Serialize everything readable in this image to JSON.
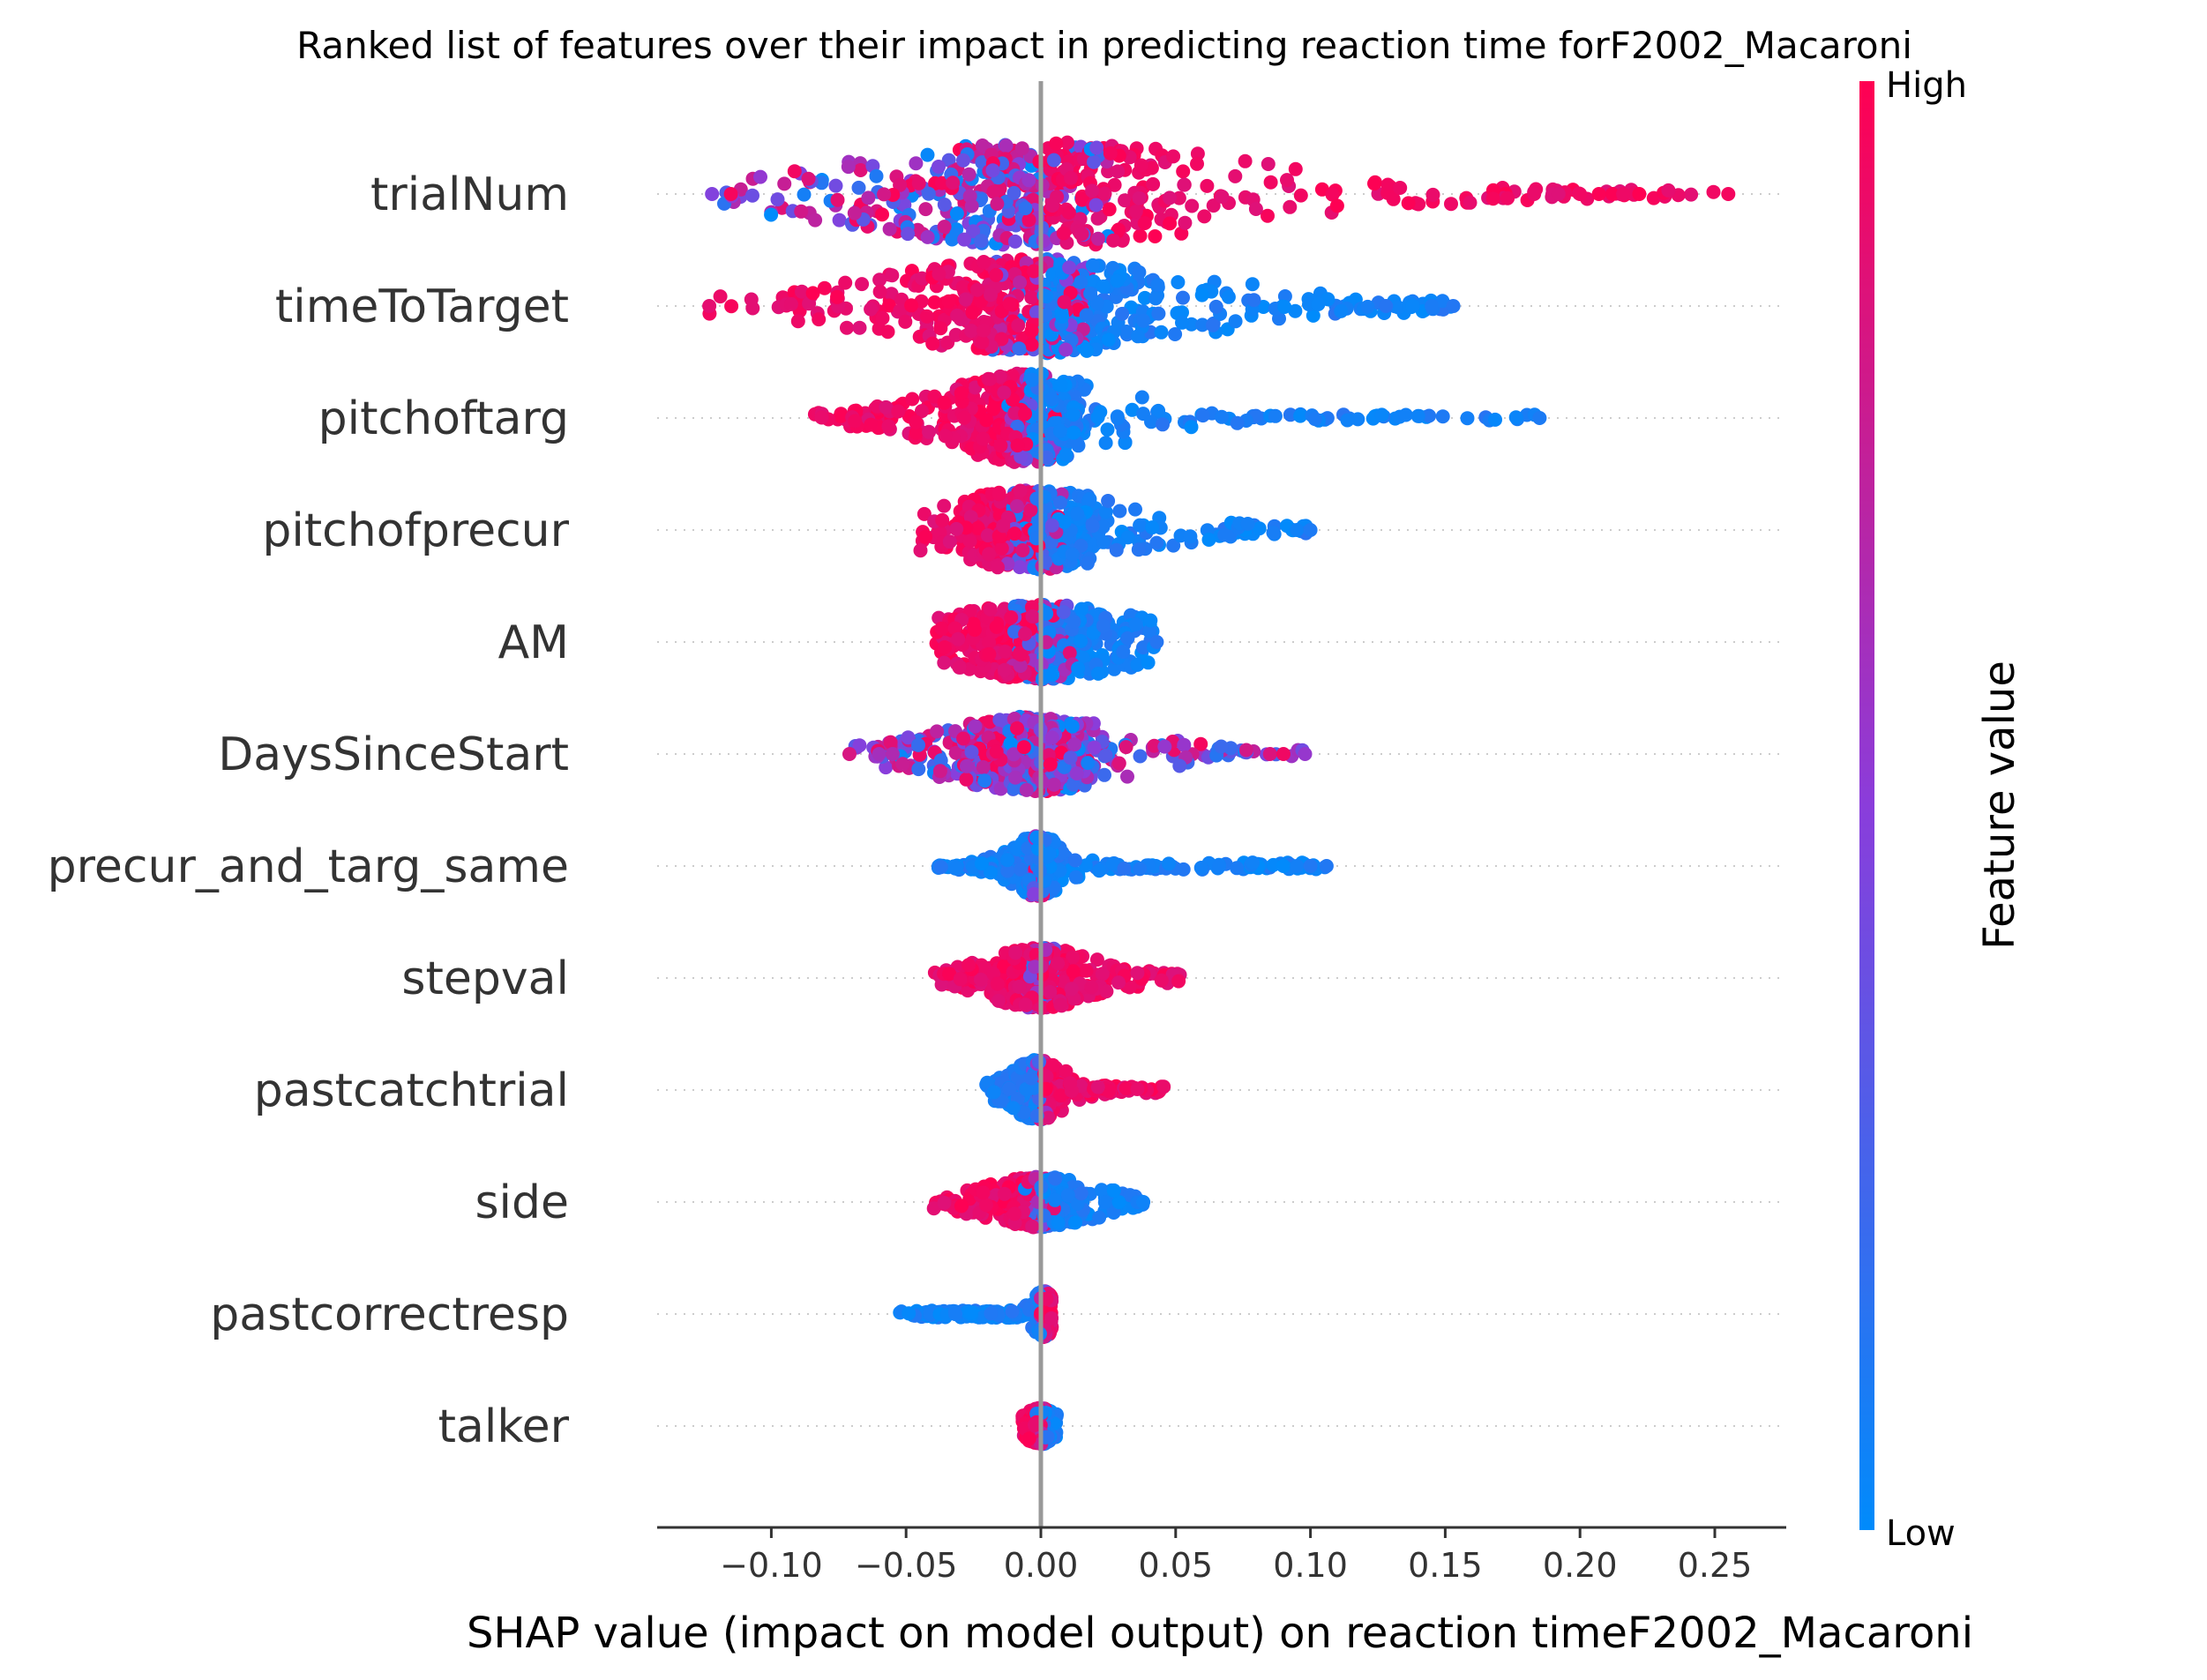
{
  "chart_data": {
    "type": "scatter",
    "subtype": "shap-beeswarm",
    "title": "Ranked list of features over their impact in predicting reaction time forF2002_Macaroni",
    "xlabel": "SHAP value (impact on model output) on reaction timeF2002_Macaroni",
    "ylabel": "",
    "xlim": [
      -0.14,
      0.275
    ],
    "xticks": [
      -0.1,
      -0.05,
      0.0,
      0.05,
      0.1,
      0.15,
      0.2,
      0.25
    ],
    "xtick_labels": [
      "−0.10",
      "−0.05",
      "0.00",
      "0.05",
      "0.10",
      "0.15",
      "0.20",
      "0.25"
    ],
    "zero_line": 0.0,
    "grid": "dotted horizontal row guides",
    "colorbar": {
      "label": "Feature value",
      "high_label": "High",
      "low_label": "Low",
      "high_color": "#ff0052",
      "mid_color": "#8a3ddb",
      "low_color": "#008bfb"
    },
    "features": [
      {
        "name": "trialNum",
        "min": -0.122,
        "max": 0.255,
        "core_low": -0.035,
        "core_high": 0.04,
        "spread": 1.0,
        "low_side": "mixed",
        "high_side": "high",
        "outliers_high": [
          0.183,
          0.192,
          0.2,
          0.207,
          0.212,
          0.216,
          0.222,
          0.255
        ],
        "outliers_low": [
          -0.122,
          -0.115
        ]
      },
      {
        "name": "timeToTarget",
        "min": -0.123,
        "max": 0.153,
        "core_low": -0.03,
        "core_high": 0.03,
        "spread": 0.9,
        "low_side": "high",
        "high_side": "low",
        "outliers_high": [
          0.128,
          0.138,
          0.145,
          0.153
        ],
        "outliers_low": [
          -0.123
        ]
      },
      {
        "name": "pitchoftarg",
        "min": -0.087,
        "max": 0.185,
        "core_low": -0.02,
        "core_high": 0.012,
        "spread": 0.85,
        "low_side": "high",
        "high_side": "low",
        "outliers_high": [
          0.185
        ],
        "outliers_low": []
      },
      {
        "name": "pitchofprecur",
        "min": -0.045,
        "max": 0.1,
        "core_low": -0.02,
        "core_high": 0.015,
        "spread": 0.75,
        "low_side": "high",
        "high_side": "low",
        "outliers_high": [
          0.095,
          0.1
        ],
        "outliers_low": []
      },
      {
        "name": "AM",
        "min": -0.04,
        "max": 0.043,
        "core_low": -0.02,
        "core_high": 0.02,
        "spread": 0.7,
        "low_side": "high",
        "high_side": "low",
        "outliers_high": [
          0.043
        ],
        "outliers_low": []
      },
      {
        "name": "DaysSinceStart",
        "min": -0.071,
        "max": 0.098,
        "core_low": -0.02,
        "core_high": 0.015,
        "spread": 0.7,
        "low_side": "mixed",
        "high_side": "mixed",
        "outliers_high": [
          0.085,
          0.09,
          0.098
        ],
        "outliers_low": [
          -0.071,
          -0.06,
          -0.055
        ]
      },
      {
        "name": "precur_and_targ_same",
        "min": -0.039,
        "max": 0.106,
        "core_low": -0.006,
        "core_high": 0.004,
        "spread": 0.55,
        "low_side": "low",
        "high_side": "low",
        "outliers_high": [
          0.09,
          0.095,
          0.1,
          0.106
        ],
        "outliers_low": []
      },
      {
        "name": "stepval",
        "min": -0.041,
        "max": 0.052,
        "core_low": -0.01,
        "core_high": 0.01,
        "spread": 0.55,
        "low_side": "high",
        "high_side": "high",
        "outliers_high": [],
        "outliers_low": []
      },
      {
        "name": "pastcatchtrial",
        "min": -0.021,
        "max": 0.046,
        "core_low": -0.006,
        "core_high": 0.004,
        "spread": 0.55,
        "low_side": "low",
        "high_side": "high",
        "outliers_high": [],
        "outliers_low": []
      },
      {
        "name": "side",
        "min": -0.04,
        "max": 0.038,
        "core_low": -0.01,
        "core_high": 0.01,
        "spread": 0.45,
        "low_side": "high",
        "high_side": "low",
        "outliers_high": [
          0.038
        ],
        "outliers_low": []
      },
      {
        "name": "pastcorrectresp",
        "min": -0.054,
        "max": 0.004,
        "core_low": -0.001,
        "core_high": 0.003,
        "spread": 0.4,
        "low_side": "low",
        "high_side": "high",
        "outliers_high": [],
        "outliers_low": []
      },
      {
        "name": "talker",
        "min": -0.007,
        "max": 0.006,
        "core_low": -0.003,
        "core_high": 0.003,
        "spread": 0.3,
        "low_side": "high",
        "high_side": "low",
        "outliers_high": [],
        "outliers_low": []
      }
    ]
  }
}
